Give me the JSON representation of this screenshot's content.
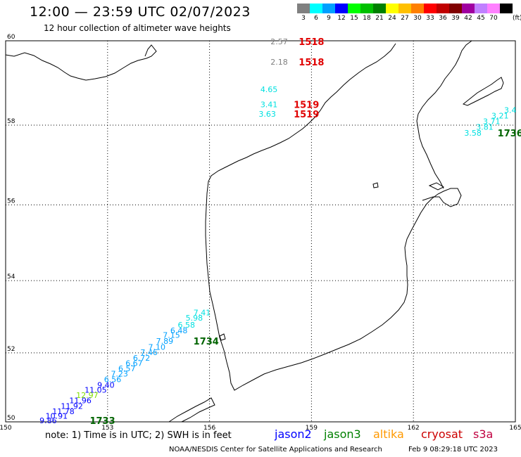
{
  "header": {
    "title": "12:00 — 23:59 UTC 02/07/2023",
    "subtitle": "12 hour collection of altimeter wave heights"
  },
  "legend": {
    "unit": "(ft)",
    "items": [
      {
        "label": "3",
        "color": "#808080"
      },
      {
        "label": "6",
        "color": "#00ffff"
      },
      {
        "label": "9",
        "color": "#00a0ff"
      },
      {
        "label": "12",
        "color": "#0000ff"
      },
      {
        "label": "15",
        "color": "#00ff00"
      },
      {
        "label": "18",
        "color": "#00c000"
      },
      {
        "label": "21",
        "color": "#008000"
      },
      {
        "label": "24",
        "color": "#ffff00"
      },
      {
        "label": "27",
        "color": "#ffc000"
      },
      {
        "label": "30",
        "color": "#ff8000"
      },
      {
        "label": "33",
        "color": "#ff0000"
      },
      {
        "label": "36",
        "color": "#c00000"
      },
      {
        "label": "39",
        "color": "#800000"
      },
      {
        "label": "42",
        "color": "#a000a0"
      },
      {
        "label": "45",
        "color": "#c080ff"
      },
      {
        "label": "70",
        "color": "#ff80ff"
      },
      {
        "label": "",
        "color": "#000000"
      }
    ]
  },
  "axes": {
    "lon_ticks": [
      "150",
      "153",
      "156",
      "159",
      "162",
      "165"
    ],
    "lat_ticks": [
      "50",
      "52",
      "54",
      "56",
      "58",
      "60"
    ]
  },
  "map_data": {
    "lon_range": [
      150,
      165
    ],
    "lat_range": [
      50,
      60
    ],
    "swh_labels": [
      {
        "text": "2.57",
        "lon": 158.05,
        "lat": 59.98,
        "color": "#808080"
      },
      {
        "text": "2.18",
        "lon": 158.05,
        "lat": 59.51,
        "color": "#808080"
      },
      {
        "text": "4.65",
        "lon": 157.75,
        "lat": 58.86,
        "color": "#00e0e0"
      },
      {
        "text": "3.41",
        "lon": 157.75,
        "lat": 58.5,
        "color": "#00e0e0"
      },
      {
        "text": "3.63",
        "lon": 157.7,
        "lat": 58.27,
        "color": "#00e0e0"
      },
      {
        "text": "3.4",
        "lon": 164.85,
        "lat": 58.37,
        "color": "#00e0e0"
      },
      {
        "text": "3.21",
        "lon": 164.55,
        "lat": 58.23,
        "color": "#00e0e0"
      },
      {
        "text": "3.71",
        "lon": 164.3,
        "lat": 58.09,
        "color": "#00e0e0"
      },
      {
        "text": "3.81",
        "lon": 164.1,
        "lat": 57.96,
        "color": "#00e0e0"
      },
      {
        "text": "3.58",
        "lon": 163.75,
        "lat": 57.81,
        "color": "#00e0e0"
      },
      {
        "text": "7.41",
        "lon": 155.78,
        "lat": 53.13,
        "color": "#00e0e0"
      },
      {
        "text": "5.98",
        "lon": 155.55,
        "lat": 52.98,
        "color": "#00e0e0"
      },
      {
        "text": "6.58",
        "lon": 155.32,
        "lat": 52.79,
        "color": "#00e0e0"
      },
      {
        "text": "6.48",
        "lon": 155.1,
        "lat": 52.63,
        "color": "#00a0ff"
      },
      {
        "text": "7.15",
        "lon": 154.88,
        "lat": 52.5,
        "color": "#00a0ff"
      },
      {
        "text": "7.89",
        "lon": 154.68,
        "lat": 52.33,
        "color": "#00a0ff"
      },
      {
        "text": "7.10",
        "lon": 154.45,
        "lat": 52.17,
        "color": "#00a0ff"
      },
      {
        "text": "7.46",
        "lon": 154.22,
        "lat": 52.02,
        "color": "#00a0ff"
      },
      {
        "text": "6.72",
        "lon": 154.0,
        "lat": 51.86,
        "color": "#00a0ff"
      },
      {
        "text": "6.67",
        "lon": 153.78,
        "lat": 51.71,
        "color": "#00a0ff"
      },
      {
        "text": "6.57",
        "lon": 153.57,
        "lat": 51.56,
        "color": "#00a0ff"
      },
      {
        "text": "7.23",
        "lon": 153.35,
        "lat": 51.4,
        "color": "#00a0ff"
      },
      {
        "text": "6.56",
        "lon": 153.15,
        "lat": 51.24,
        "color": "#00a0ff"
      },
      {
        "text": "9.40",
        "lon": 152.95,
        "lat": 51.08,
        "color": "#0000ff"
      },
      {
        "text": "11.05",
        "lon": 152.65,
        "lat": 50.94,
        "color": "#0000ff"
      },
      {
        "text": "12.97",
        "lon": 152.4,
        "lat": 50.78,
        "color": "#80e000"
      },
      {
        "text": "11.96",
        "lon": 152.2,
        "lat": 50.63,
        "color": "#0000ff"
      },
      {
        "text": "11.92",
        "lon": 151.95,
        "lat": 50.47,
        "color": "#0000ff"
      },
      {
        "text": "11.78",
        "lon": 151.7,
        "lat": 50.31,
        "color": "#0000ff"
      },
      {
        "text": "10.91",
        "lon": 151.5,
        "lat": 50.18,
        "color": "#0000ff"
      },
      {
        "text": "9.86",
        "lon": 151.25,
        "lat": 50.04,
        "color": "#0000ff"
      }
    ],
    "time_labels": [
      {
        "text": "1518",
        "lon": 159.0,
        "lat": 59.98,
        "color": "#e00000"
      },
      {
        "text": "1518",
        "lon": 159.0,
        "lat": 59.51,
        "color": "#e00000"
      },
      {
        "text": "1519",
        "lon": 158.85,
        "lat": 58.5,
        "color": "#e00000"
      },
      {
        "text": "1519",
        "lon": 158.85,
        "lat": 58.27,
        "color": "#e00000"
      },
      {
        "text": "1736",
        "lon": 164.85,
        "lat": 57.81,
        "color": "#006400"
      },
      {
        "text": "1734",
        "lon": 155.9,
        "lat": 52.33,
        "color": "#006400"
      },
      {
        "text": "1733",
        "lon": 152.85,
        "lat": 50.04,
        "color": "#006400"
      }
    ]
  },
  "footer": {
    "note": "note: 1) Time is in UTC; 2) SWH is in feet",
    "satellites": [
      {
        "name": "jason2",
        "color": "#0000ff"
      },
      {
        "name": "jason3",
        "color": "#008000"
      },
      {
        "name": "altika",
        "color": "#ff9900"
      },
      {
        "name": "cryosat",
        "color": "#cc0000"
      },
      {
        "name": "s3a",
        "color": "#c00040"
      }
    ],
    "credit": "NOAA/NESDIS Center for Satellite Applications and Research",
    "generated": "Feb  9 08:29:18 UTC 2023"
  }
}
